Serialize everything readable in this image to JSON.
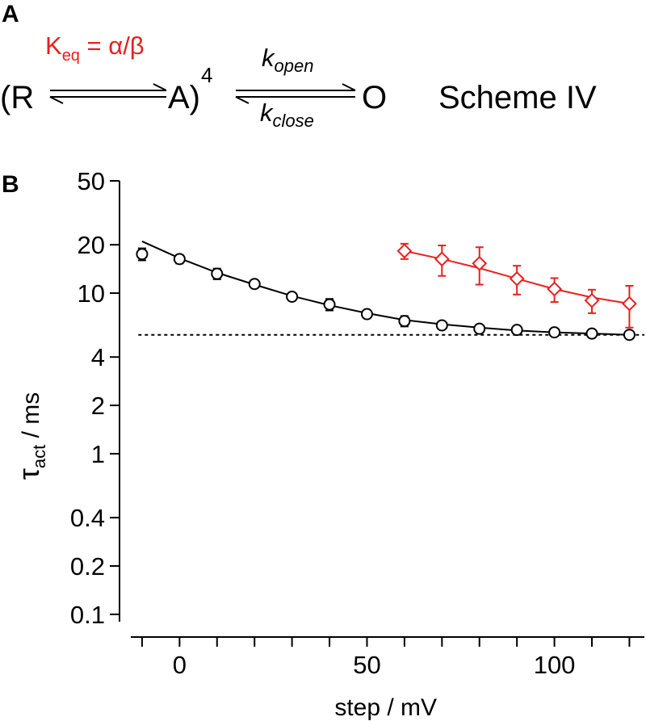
{
  "panel_a": {
    "letter": "A",
    "scheme_label": "Scheme IV",
    "left_paren": "(R",
    "state_a": "A)",
    "exponent": "4",
    "state_o": "O",
    "keq": {
      "K": "K",
      "sub": "eq",
      "rhs": " = α/β"
    },
    "k_open": {
      "k": "k",
      "sub": "open"
    },
    "k_close": {
      "k": "k",
      "sub": "close"
    },
    "colors": {
      "keq": "#e8201e",
      "text": "#000000"
    }
  },
  "panel_b": {
    "letter": "B"
  },
  "chart_data": {
    "type": "scatter",
    "xlabel": "step / mV",
    "ylabel": {
      "symbol": "τ",
      "sub": "act",
      "rest": " / ms"
    },
    "xlim": [
      -13,
      124
    ],
    "ylim": [
      0.09,
      50
    ],
    "y_scale": "log",
    "x_ticks": [
      -10,
      0,
      10,
      20,
      30,
      40,
      50,
      60,
      70,
      80,
      90,
      100,
      110,
      120
    ],
    "x_tick_labels": [
      {
        "value": 0,
        "label": "0"
      },
      {
        "value": 50,
        "label": "50"
      },
      {
        "value": 100,
        "label": "100"
      }
    ],
    "y_ticks": [
      0.1,
      0.2,
      0.4,
      1,
      2,
      4,
      10,
      20,
      50
    ],
    "y_tick_labels": [
      "0.1",
      "0.2",
      "0.4",
      "1",
      "2",
      "4",
      "10",
      "20",
      "50"
    ],
    "reference_line": {
      "y": 5.5,
      "style": "dotted"
    },
    "series": [
      {
        "marker": "circle",
        "color": "#000000",
        "x": [
          -10,
          0,
          10,
          20,
          30,
          40,
          50,
          60,
          70,
          80,
          90,
          100,
          110,
          120
        ],
        "y": [
          17.5,
          16.3,
          13.2,
          11.4,
          9.5,
          8.5,
          7.4,
          6.7,
          6.3,
          6.0,
          5.9,
          5.7,
          5.6,
          5.5
        ],
        "err": [
          1.5,
          1.0,
          1.0,
          0.5,
          0.4,
          0.7,
          0.3,
          0.5,
          0.25,
          0.2,
          0.2,
          0.2,
          0.2,
          0.15
        ],
        "fit": {
          "x": [
            -10,
            0,
            10,
            20,
            30,
            40,
            50,
            60,
            70,
            80,
            90,
            100,
            110,
            120
          ],
          "y": [
            21.0,
            16.5,
            13.4,
            11.3,
            9.6,
            8.4,
            7.5,
            6.8,
            6.4,
            6.1,
            5.85,
            5.7,
            5.6,
            5.5
          ]
        }
      },
      {
        "marker": "diamond",
        "color": "#e8201e",
        "x": [
          60,
          70,
          80,
          90,
          100,
          110,
          120
        ],
        "y": [
          18.3,
          16.3,
          15.3,
          12.3,
          10.6,
          9.0,
          8.6
        ],
        "err": [
          2.0,
          3.5,
          4.0,
          2.5,
          1.8,
          1.5,
          2.5
        ],
        "fit": {
          "x": [
            60,
            70,
            80,
            90,
            100,
            110,
            120
          ],
          "y": [
            18.3,
            16.3,
            14.3,
            12.3,
            10.6,
            9.4,
            8.6
          ]
        }
      }
    ]
  }
}
